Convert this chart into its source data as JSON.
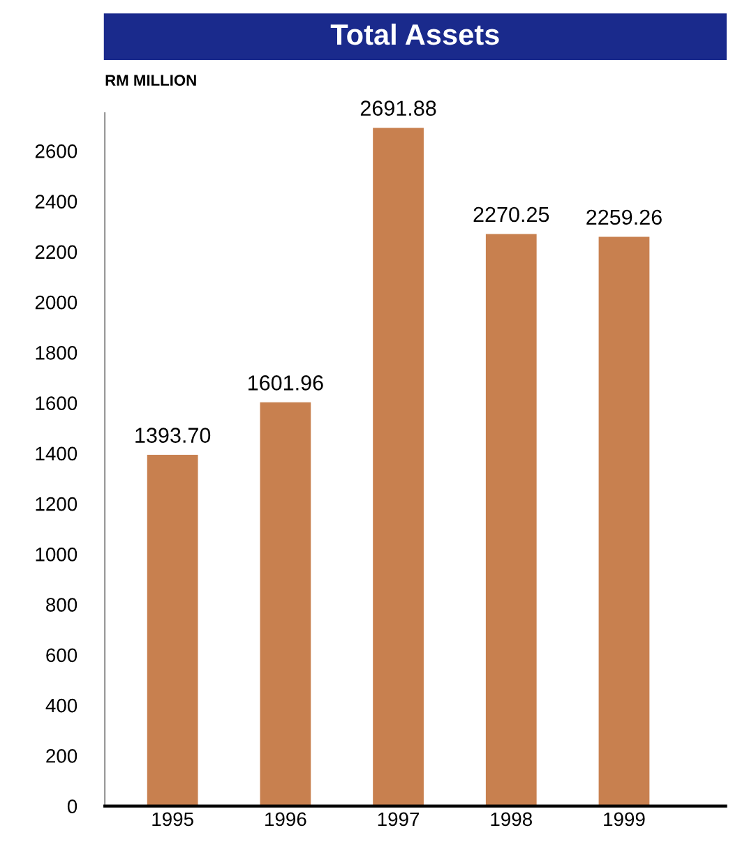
{
  "chart_data": {
    "type": "bar",
    "title": "Total Assets",
    "ylabel": "RM MILLION",
    "categories": [
      "1995",
      "1996",
      "1997",
      "1998",
      "1999"
    ],
    "values": [
      1393.7,
      1601.96,
      2691.88,
      2270.25,
      2259.26
    ],
    "color": "#c8804f",
    "value_labels": [
      "1393.70",
      "1601.96",
      "2691.88",
      "2270.25",
      "2259.26"
    ],
    "ylim": [
      0,
      2750
    ],
    "yticks": [
      0,
      200,
      400,
      600,
      800,
      1000,
      1200,
      1400,
      1600,
      1800,
      2000,
      2200,
      2400,
      2600
    ],
    "grid": false,
    "legend": false
  }
}
